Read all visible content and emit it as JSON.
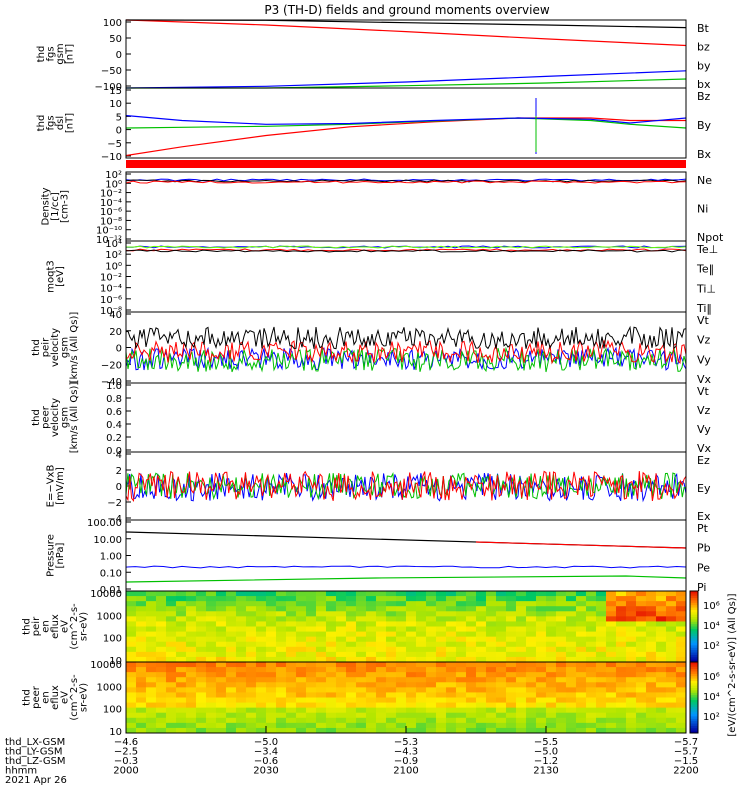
{
  "title": "P3 (TH-D) fields and ground moments overview",
  "colors": {
    "black": "#000000",
    "red": "#ff0000",
    "green": "#00c000",
    "blue": "#0000ff",
    "ltgreen": "#66ff00"
  },
  "chart_data": [
    {
      "type": "line",
      "ylabel": [
        "thd",
        "fgs",
        "gsm",
        "[nT]"
      ],
      "yticks": [
        "100",
        "50",
        "0",
        "−50",
        "−100"
      ],
      "ylim": [
        -100,
        105
      ],
      "x": [
        0,
        0.25,
        0.5,
        0.75,
        1.0
      ],
      "series": [
        {
          "name": "Bt",
          "color": "black",
          "values": [
            110,
            104,
            97,
            90,
            82
          ]
        },
        {
          "name": "bz",
          "color": "red",
          "values": [
            108,
            90,
            70,
            48,
            28
          ]
        },
        {
          "name": "by",
          "color": "green",
          "values": [
            -105,
            -100,
            -93,
            -85,
            -73
          ]
        },
        {
          "name": "bx",
          "color": "blue",
          "values": [
            -105,
            -95,
            -82,
            -65,
            -48
          ]
        }
      ]
    },
    {
      "type": "line",
      "ylabel": [
        "thd",
        "fgs",
        "dsl",
        "[nT]"
      ],
      "yticks": [
        "15",
        "10",
        "5",
        "0",
        "−5",
        "−10"
      ],
      "ylim": [
        -13,
        15
      ],
      "x": [
        0,
        0.1,
        0.25,
        0.4,
        0.55,
        0.7,
        0.83,
        0.9,
        1.0
      ],
      "series": [
        {
          "name": "Bz",
          "color": "red",
          "values": [
            -12,
            -8.5,
            -4,
            -0.5,
            1.5,
            3,
            3,
            2,
            2
          ]
        },
        {
          "name": "By",
          "color": "green",
          "values": [
            -1,
            -0.7,
            -0.3,
            0.5,
            1.8,
            3,
            2,
            0.5,
            -1
          ]
        },
        {
          "name": "Bx",
          "color": "blue",
          "values": [
            4,
            2,
            0.5,
            0.8,
            2,
            3,
            2.5,
            1,
            3
          ]
        }
      ]
    },
    {
      "type": "line",
      "ylabel": [
        "Density",
        "[1/cc]",
        "[cm-3]"
      ],
      "yticks": [
        "10²",
        "10⁰",
        "10⁻²",
        "10⁻⁴",
        "10⁻⁶",
        "10⁻⁸",
        "10⁻¹⁰",
        "10⁻¹²"
      ],
      "series": [
        {
          "name": "Ne",
          "color": "red"
        },
        {
          "name": "Ni",
          "color": "black"
        },
        {
          "name": "Npot",
          "color": "blue"
        }
      ]
    },
    {
      "type": "line",
      "ylabel": [
        "moqt3",
        "[eV]"
      ],
      "yticks": [
        "10⁴",
        "10²",
        "10⁰",
        "10⁻²",
        "10⁻⁴",
        "10⁻⁶",
        "10⁻⁸"
      ],
      "series": [
        {
          "name": "Te⊥",
          "color": "red"
        },
        {
          "name": "Te‖",
          "color": "black"
        },
        {
          "name": "Ti⊥",
          "color": "blue"
        },
        {
          "name": "Ti‖",
          "color": "ltgreen"
        }
      ]
    },
    {
      "type": "line",
      "ylabel": [
        "thd",
        "peir",
        "velocity",
        "gsm",
        "[km/s (All Qs)]"
      ],
      "yticks": [
        "40",
        "20",
        "0",
        "−20",
        "−40"
      ],
      "series": [
        {
          "name": "Vt",
          "color": "black"
        },
        {
          "name": "Vz",
          "color": "red"
        },
        {
          "name": "Vy",
          "color": "green"
        },
        {
          "name": "Vx",
          "color": "blue"
        }
      ]
    },
    {
      "type": "line",
      "ylabel": [
        "thd",
        "peer",
        "velocity",
        "gsm",
        "[km/s (All Qs)]"
      ],
      "yticks": [
        "1.0",
        "0.8",
        "0.6",
        "0.4",
        "0.2",
        "0.0"
      ],
      "series": [
        {
          "name": "Vt",
          "color": "black"
        },
        {
          "name": "Vz",
          "color": "red"
        },
        {
          "name": "Vy",
          "color": "green"
        },
        {
          "name": "Vx",
          "color": "blue"
        }
      ]
    },
    {
      "type": "line",
      "ylabel": [
        "E=−VxB",
        "[mV/m]"
      ],
      "yticks": [
        "4",
        "2",
        "0",
        "−2",
        "−4"
      ],
      "series": [
        {
          "name": "Ez",
          "color": "red"
        },
        {
          "name": "Ey",
          "color": "green"
        },
        {
          "name": "Ex",
          "color": "blue"
        }
      ]
    },
    {
      "type": "line",
      "ylabel": [
        "Pressure",
        "[nPa]"
      ],
      "yticks": [
        "100.00",
        "10.00",
        "1.00",
        "0.10",
        "0.01"
      ],
      "series": [
        {
          "name": "Pt",
          "color": "black"
        },
        {
          "name": "Pb",
          "color": "red"
        },
        {
          "name": "Pe",
          "color": "green"
        },
        {
          "name": "Pi",
          "color": "blue"
        }
      ]
    },
    {
      "type": "heatmap",
      "ylabel": [
        "thd",
        "peir",
        "en",
        "eflux",
        "eV",
        "(cm^2-s-",
        "sr-eV)"
      ],
      "yticks": [
        "10000",
        "1000",
        "100",
        "10"
      ]
    },
    {
      "type": "heatmap",
      "ylabel": [
        "thd",
        "peer",
        "en",
        "eflux",
        "eV",
        "(cm^2-s-",
        "sr-eV)"
      ],
      "yticks": [
        "10000",
        "1000",
        "100",
        "10"
      ]
    }
  ],
  "colorbar": {
    "label": "[eV/(cm^2-s-sr-eV)] (All Qs)]",
    "ticks_top": [
      "10⁶",
      "10⁴",
      "10²"
    ],
    "ticks_bottom": [
      "10⁶",
      "10⁴",
      "10²"
    ]
  },
  "x_axis": {
    "rows": [
      {
        "label": "thd_LX-GSM",
        "values": [
          "−4.6",
          "−5.0",
          "−5.3",
          "−5.5",
          "−5.7"
        ]
      },
      {
        "label": "thd_LY-GSM",
        "values": [
          "−2.5",
          "−3.4",
          "−4.3",
          "−5.0",
          "−5.7"
        ]
      },
      {
        "label": "thd_LZ-GSM",
        "values": [
          "−0.3",
          "−0.6",
          "−0.9",
          "−1.2",
          "−1.5"
        ]
      },
      {
        "label": "hhmm",
        "values": [
          "2000",
          "2030",
          "2100",
          "2130",
          "2200"
        ]
      }
    ],
    "date": "2021 Apr 26"
  }
}
